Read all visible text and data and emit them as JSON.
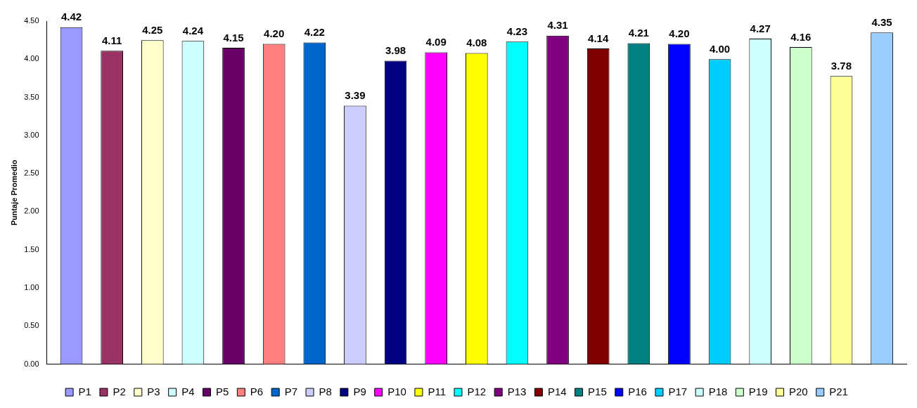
{
  "chart_data": {
    "type": "bar",
    "ylabel": "Puntaje Promedio",
    "categories": [
      null
    ],
    "ylim": [
      0,
      4.5
    ],
    "yticks": [
      {
        "value": 0,
        "label": "0.00"
      },
      {
        "value": 0.5,
        "label": "0.50"
      },
      {
        "value": 1,
        "label": "1.00"
      },
      {
        "value": 1.5,
        "label": "1.50"
      },
      {
        "value": 2,
        "label": "2.00"
      },
      {
        "value": 2.5,
        "label": "2.50"
      },
      {
        "value": 3,
        "label": "3.00"
      },
      {
        "value": 3.5,
        "label": "3.50"
      },
      {
        "value": 4,
        "label": "4.00"
      },
      {
        "value": 4.5,
        "label": "4.50"
      }
    ],
    "grid": false,
    "legend": "bottom",
    "series": [
      {
        "name": "P1",
        "color": "#9999ff",
        "values": [
          4.42
        ],
        "value_labels": [
          "4.42"
        ]
      },
      {
        "name": "P2",
        "color": "#993366",
        "values": [
          4.11
        ],
        "value_labels": [
          "4.11"
        ]
      },
      {
        "name": "P3",
        "color": "#ffffcc",
        "values": [
          4.25
        ],
        "value_labels": [
          "4.25"
        ]
      },
      {
        "name": "P4",
        "color": "#ccffff",
        "values": [
          4.24
        ],
        "value_labels": [
          "4.24"
        ]
      },
      {
        "name": "P5",
        "color": "#660066",
        "values": [
          4.15
        ],
        "value_labels": [
          "4.15"
        ]
      },
      {
        "name": "P6",
        "color": "#ff8080",
        "values": [
          4.2
        ],
        "value_labels": [
          "4.20"
        ]
      },
      {
        "name": "P7",
        "color": "#0066cc",
        "values": [
          4.22
        ],
        "value_labels": [
          "4.22"
        ]
      },
      {
        "name": "P8",
        "color": "#ccccff",
        "values": [
          3.39
        ],
        "value_labels": [
          "3.39"
        ]
      },
      {
        "name": "P9",
        "color": "#000080",
        "values": [
          3.98
        ],
        "value_labels": [
          "3.98"
        ]
      },
      {
        "name": "P10",
        "color": "#ff00ff",
        "values": [
          4.09
        ],
        "value_labels": [
          "4.09"
        ]
      },
      {
        "name": "P11",
        "color": "#ffff00",
        "values": [
          4.08
        ],
        "value_labels": [
          "4.08"
        ]
      },
      {
        "name": "P12",
        "color": "#00ffff",
        "values": [
          4.23
        ],
        "value_labels": [
          "4.23"
        ]
      },
      {
        "name": "P13",
        "color": "#800080",
        "values": [
          4.31
        ],
        "value_labels": [
          "4.31"
        ]
      },
      {
        "name": "P14",
        "color": "#800000",
        "values": [
          4.14
        ],
        "value_labels": [
          "4.14"
        ]
      },
      {
        "name": "P15",
        "color": "#008080",
        "values": [
          4.21
        ],
        "value_labels": [
          "4.21"
        ]
      },
      {
        "name": "P16",
        "color": "#0000ff",
        "values": [
          4.2
        ],
        "value_labels": [
          "4.20"
        ]
      },
      {
        "name": "P17",
        "color": "#00ccff",
        "values": [
          4.0
        ],
        "value_labels": [
          "4.00"
        ]
      },
      {
        "name": "P18",
        "color": "#ccffff",
        "values": [
          4.27
        ],
        "value_labels": [
          "4.27"
        ]
      },
      {
        "name": "P19",
        "color": "#ccffcc",
        "values": [
          4.16
        ],
        "value_labels": [
          "4.16"
        ]
      },
      {
        "name": "P20",
        "color": "#ffff99",
        "values": [
          3.78
        ],
        "value_labels": [
          "3.78"
        ]
      },
      {
        "name": "P21",
        "color": "#99ccff",
        "values": [
          4.35
        ],
        "value_labels": [
          "4.35"
        ]
      }
    ]
  }
}
